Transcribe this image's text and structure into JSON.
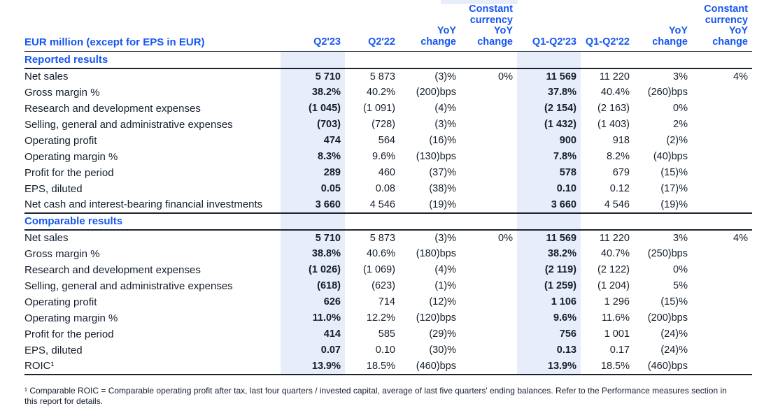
{
  "colors": {
    "accent_blue": "#1656F0",
    "text_dark": "#141E2C",
    "row_highlight": "#E8EEF9",
    "rule_line": "#1C2430"
  },
  "table": {
    "columns": [
      "EUR million (except for EPS in EUR)",
      "Q2'23",
      "Q2'22",
      "YoY\nchange",
      "Constant\ncurrency\nYoY\nchange",
      "Q1-Q2'23",
      "Q1-Q2'22",
      "YoY\nchange",
      "Constant\ncurrency\nYoY\nchange"
    ],
    "highlighted_columns": [
      "Q2'23",
      "Q1-Q2'23"
    ],
    "sections": [
      {
        "title": "Reported results",
        "rows": [
          {
            "label": "Net sales",
            "values": [
              "5 710",
              "5 873",
              "(3)%",
              "0%",
              "11 569",
              "11 220",
              "3%",
              "4%"
            ]
          },
          {
            "label": "Gross margin %",
            "values": [
              "38.2%",
              "40.2%",
              "(200)bps",
              "",
              "37.8%",
              "40.4%",
              "(260)bps",
              ""
            ]
          },
          {
            "label": "Research and development expenses",
            "values": [
              "(1 045)",
              "(1 091)",
              "(4)%",
              "",
              "(2 154)",
              "(2 163)",
              "0%",
              ""
            ]
          },
          {
            "label": "Selling, general and administrative expenses",
            "values": [
              "(703)",
              "(728)",
              "(3)%",
              "",
              "(1 432)",
              "(1 403)",
              "2%",
              ""
            ]
          },
          {
            "label": "Operating profit",
            "values": [
              "474",
              "564",
              "(16)%",
              "",
              "900",
              "918",
              "(2)%",
              ""
            ]
          },
          {
            "label": "Operating margin %",
            "values": [
              "8.3%",
              "9.6%",
              "(130)bps",
              "",
              "7.8%",
              "8.2%",
              "(40)bps",
              ""
            ]
          },
          {
            "label": "Profit for the period",
            "values": [
              "289",
              "460",
              "(37)%",
              "",
              "578",
              "679",
              "(15)%",
              ""
            ]
          },
          {
            "label": "EPS, diluted",
            "values": [
              "0.05",
              "0.08",
              "(38)%",
              "",
              "0.10",
              "0.12",
              "(17)%",
              ""
            ]
          },
          {
            "label": "Net cash and interest-bearing financial investments",
            "values": [
              "3 660",
              "4 546",
              "(19)%",
              "",
              "3 660",
              "4 546",
              "(19)%",
              ""
            ]
          }
        ]
      },
      {
        "title": "Comparable results",
        "rows": [
          {
            "label": "Net sales",
            "values": [
              "5 710",
              "5 873",
              "(3)%",
              "0%",
              "11 569",
              "11 220",
              "3%",
              "4%"
            ]
          },
          {
            "label": "Gross margin %",
            "values": [
              "38.8%",
              "40.6%",
              "(180)bps",
              "",
              "38.2%",
              "40.7%",
              "(250)bps",
              ""
            ]
          },
          {
            "label": "Research and development expenses",
            "values": [
              "(1 026)",
              "(1 069)",
              "(4)%",
              "",
              "(2 119)",
              "(2 122)",
              "0%",
              ""
            ]
          },
          {
            "label": "Selling, general and administrative expenses",
            "values": [
              "(618)",
              "(623)",
              "(1)%",
              "",
              "(1 259)",
              "(1 204)",
              "5%",
              ""
            ]
          },
          {
            "label": "Operating profit",
            "values": [
              "626",
              "714",
              "(12)%",
              "",
              "1 106",
              "1 296",
              "(15)%",
              ""
            ]
          },
          {
            "label": "Operating margin %",
            "values": [
              "11.0%",
              "12.2%",
              "(120)bps",
              "",
              "9.6%",
              "11.6%",
              "(200)bps",
              ""
            ]
          },
          {
            "label": "Profit for the period",
            "values": [
              "414",
              "585",
              "(29)%",
              "",
              "756",
              "1 001",
              "(24)%",
              ""
            ]
          },
          {
            "label": "EPS, diluted",
            "values": [
              "0.07",
              "0.10",
              "(30)%",
              "",
              "0.13",
              "0.17",
              "(24)%",
              ""
            ]
          },
          {
            "label": "ROIC¹",
            "values": [
              "13.9%",
              "18.5%",
              "(460)bps",
              "",
              "13.9%",
              "18.5%",
              "(460)bps",
              ""
            ]
          }
        ]
      }
    ]
  },
  "footnote": "¹ Comparable ROIC = Comparable operating profit after tax, last four quarters / invested capital, average of last five quarters' ending balances. Refer to the Performance measures section in\nthis report for details."
}
